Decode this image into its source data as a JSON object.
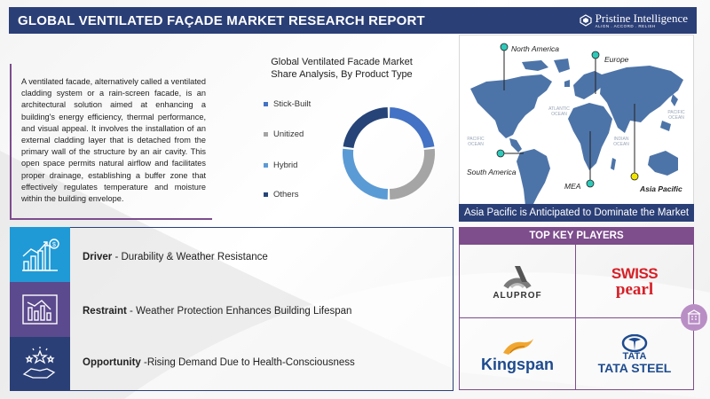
{
  "header": {
    "title": "GLOBAL VENTILATED FAÇADE MARKET RESEARCH REPORT",
    "logo_name": "Pristine Intelligence",
    "logo_tagline": "ALIGN . ACCORD . RELISH"
  },
  "description": "A ventilated facade, alternatively called a ventilated cladding system or a rain-screen facade, is an architectural solution aimed at enhancing a building's energy efficiency, thermal performance, and visual appeal. It involves the installation of an external cladding layer that is detached from the primary wall of the structure by an air cavity. This open space permits natural airflow and facilitates proper drainage, establishing a buffer zone that effectively regulates temperature and moisture within the building envelope.",
  "chart_data": {
    "type": "pie",
    "variant": "donut",
    "title": "Global Ventilated Facade Market Share Analysis, By Product Type",
    "categories": [
      "Stick-Built",
      "Unitized",
      "Hybrid",
      "Others"
    ],
    "values": [
      23,
      27,
      27,
      23
    ],
    "colors": [
      "#4472c4",
      "#a5a5a5",
      "#5b9bd5",
      "#264478"
    ],
    "legend_position": "left"
  },
  "map": {
    "regions": [
      "North America",
      "Europe",
      "South America",
      "MEA",
      "Asia Pacific"
    ],
    "oceans": {
      "atlantic": "ATLANTIC OCEAN",
      "pacific_left": "PACIFIC OCEAN",
      "pacific_right": "PACIFIC OCEAN",
      "indian": "INDIAN OCEAN"
    },
    "banner": "Asia Pacific is Anticipated to Dominate the Market",
    "marker_color": "#2ec9b9",
    "highlight_color": "#f2e600"
  },
  "factors": [
    {
      "label": "Driver",
      "text": " - Durability & Weather Resistance",
      "icon": "growth-chart-icon",
      "bg": "#1f9ad6"
    },
    {
      "label": "Restraint",
      "text": " - Weather Protection Enhances Building Lifespan",
      "icon": "declining-chart-icon",
      "bg": "#5c4a8e"
    },
    {
      "label": "Opportunity",
      "text": " -Rising Demand Due to Health-Consciousness",
      "icon": "hand-stars-icon",
      "bg": "#2b3f77"
    }
  ],
  "players": {
    "title": "TOP KEY PLAYERS",
    "list": [
      {
        "name": "ALUPROF"
      },
      {
        "name_line1": "SWISS",
        "name_line2": "pearl"
      },
      {
        "name": "Kingspan"
      },
      {
        "name_line1": "TATA",
        "name_line2": "TATA STEEL"
      }
    ]
  }
}
